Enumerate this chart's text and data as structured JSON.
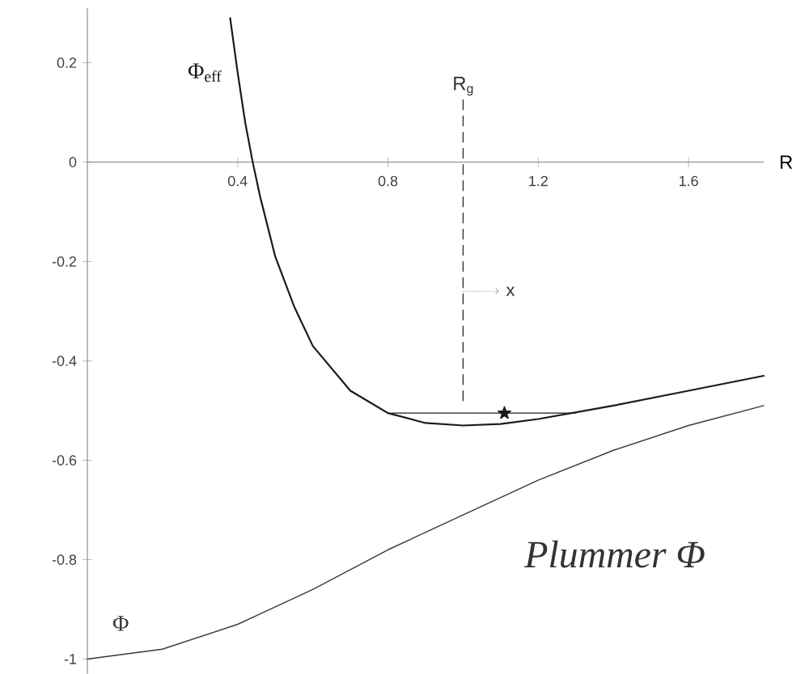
{
  "chart_data": {
    "type": "line",
    "xlabel": "R",
    "xlim": [
      0,
      1.8
    ],
    "ylim": [
      -1.03,
      0.31
    ],
    "xticks": [
      0.4,
      0.8,
      1.2,
      1.6
    ],
    "yticks": [
      0.2,
      0,
      -0.2,
      -0.4,
      -0.6,
      -0.8,
      -1
    ],
    "grid": false,
    "series": [
      {
        "name": "Φ$_{eff}$",
        "color": "#1a1a1a",
        "x": [
          0.38,
          0.4,
          0.42,
          0.44,
          0.46,
          0.5,
          0.55,
          0.6,
          0.7,
          0.8,
          0.9,
          1.0,
          1.1,
          1.2,
          1.4,
          1.6,
          1.8
        ],
        "values": [
          0.29,
          0.18,
          0.08,
          0.0,
          -0.07,
          -0.19,
          -0.29,
          -0.37,
          -0.46,
          -0.505,
          -0.525,
          -0.53,
          -0.527,
          -0.517,
          -0.49,
          -0.46,
          -0.43
        ]
      },
      {
        "name": "Φ",
        "color": "#3a3a3a",
        "x": [
          0,
          0.2,
          0.4,
          0.6,
          0.8,
          1.0,
          1.2,
          1.4,
          1.6,
          1.8
        ],
        "values": [
          -1,
          -0.98,
          -0.93,
          -0.86,
          -0.78,
          -0.71,
          -0.64,
          -0.58,
          -0.53,
          -0.49
        ]
      },
      {
        "type": "line",
        "color": "#1a1a1a",
        "x": [
          0.81,
          1.3
        ],
        "values": [
          -0.505,
          -0.505
        ]
      },
      {
        "type": "line",
        "line_style": "dashed",
        "color": "#333333",
        "x": [
          1,
          1
        ],
        "values": [
          -0.48,
          0.13
        ]
      },
      {
        "type": "scatter",
        "marker": "star",
        "color": "#1a1a1a",
        "x": [
          1.11
        ],
        "values": [
          -0.505
        ]
      }
    ],
    "annotations": [
      "R$_{g}$",
      {
        "text": "x",
        "x": 1,
        "y": -0.26
      },
      "Plummer Φ"
    ]
  }
}
